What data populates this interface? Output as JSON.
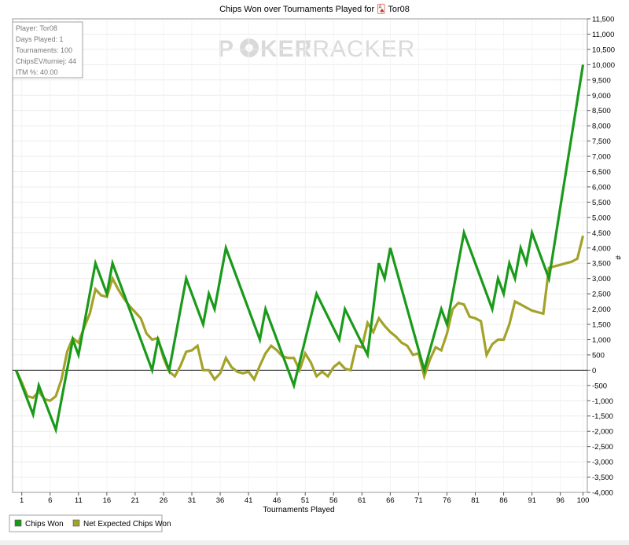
{
  "chart_data": {
    "type": "line",
    "title": "Chips Won over Tournaments Played for",
    "title_player": "Tor08",
    "xlabel": "Tournaments Played",
    "ylabel": "#",
    "xlim": [
      0,
      100
    ],
    "ylim": [
      -4000,
      11500
    ],
    "x_ticks": [
      1,
      6,
      11,
      16,
      21,
      26,
      31,
      36,
      41,
      46,
      51,
      56,
      61,
      66,
      71,
      76,
      81,
      86,
      91,
      96,
      100
    ],
    "y_ticks": [
      -4000,
      -3500,
      -3000,
      -2500,
      -2000,
      -1500,
      -1000,
      -500,
      0,
      500,
      1000,
      1500,
      2000,
      2500,
      3000,
      3500,
      4000,
      4500,
      5000,
      5500,
      6000,
      6500,
      7000,
      7500,
      8000,
      8500,
      9000,
      9500,
      10000,
      10500,
      11000,
      11500
    ],
    "y_tick_labels": [
      "-4,000",
      "-3,500",
      "-3,000",
      "-2,500",
      "-2,000",
      "-1,500",
      "-1,000",
      "-500",
      "0",
      "500",
      "1,000",
      "1,500",
      "2,000",
      "2,500",
      "3,000",
      "3,500",
      "4,000",
      "4,500",
      "5,000",
      "5,500",
      "6,000",
      "6,500",
      "7,000",
      "7,500",
      "8,000",
      "8,500",
      "9,000",
      "9,500",
      "10,000",
      "10,500",
      "11,000",
      "11,500"
    ],
    "grid": true,
    "legend_position": "bottom-left",
    "series": [
      {
        "name": "Chips Won",
        "color": "#1a9a1a",
        "points": [
          [
            0,
            0
          ],
          [
            3,
            -1450
          ],
          [
            4,
            -500
          ],
          [
            7,
            -1950
          ],
          [
            10,
            1000
          ],
          [
            11,
            500
          ],
          [
            14,
            3500
          ],
          [
            16,
            2500
          ],
          [
            17,
            3500
          ],
          [
            24,
            0
          ],
          [
            25,
            1000
          ],
          [
            27,
            0
          ],
          [
            30,
            3000
          ],
          [
            33,
            1500
          ],
          [
            34,
            2500
          ],
          [
            35,
            2000
          ],
          [
            37,
            4000
          ],
          [
            43,
            1000
          ],
          [
            44,
            2000
          ],
          [
            49,
            -500
          ],
          [
            53,
            2500
          ],
          [
            57,
            1000
          ],
          [
            58,
            2000
          ],
          [
            62,
            500
          ],
          [
            64,
            3500
          ],
          [
            65,
            3000
          ],
          [
            66,
            4000
          ],
          [
            72,
            0
          ],
          [
            75,
            2000
          ],
          [
            76,
            1500
          ],
          [
            79,
            4500
          ],
          [
            84,
            2000
          ],
          [
            85,
            3000
          ],
          [
            86,
            2500
          ],
          [
            87,
            3500
          ],
          [
            88,
            3000
          ],
          [
            89,
            4000
          ],
          [
            90,
            3500
          ],
          [
            91,
            4500
          ],
          [
            94,
            3000
          ],
          [
            100,
            10000
          ]
        ]
      },
      {
        "name": "Net Expected Chips Won",
        "color": "#a3a22a",
        "points": [
          [
            0,
            0
          ],
          [
            1,
            -400
          ],
          [
            2,
            -850
          ],
          [
            3,
            -900
          ],
          [
            4,
            -700
          ],
          [
            5,
            -950
          ],
          [
            6,
            -1000
          ],
          [
            7,
            -850
          ],
          [
            8,
            -300
          ],
          [
            9,
            600
          ],
          [
            10,
            1050
          ],
          [
            11,
            900
          ],
          [
            12,
            1400
          ],
          [
            13,
            1850
          ],
          [
            14,
            2650
          ],
          [
            15,
            2450
          ],
          [
            16,
            2400
          ],
          [
            17,
            3000
          ],
          [
            18,
            2650
          ],
          [
            19,
            2350
          ],
          [
            20,
            2100
          ],
          [
            21,
            1900
          ],
          [
            22,
            1700
          ],
          [
            23,
            1200
          ],
          [
            24,
            1000
          ],
          [
            25,
            1050
          ],
          [
            26,
            400
          ],
          [
            27,
            -50
          ],
          [
            28,
            -200
          ],
          [
            29,
            150
          ],
          [
            30,
            600
          ],
          [
            31,
            650
          ],
          [
            32,
            800
          ],
          [
            33,
            0
          ],
          [
            34,
            0
          ],
          [
            35,
            -300
          ],
          [
            36,
            -100
          ],
          [
            37,
            400
          ],
          [
            38,
            100
          ],
          [
            39,
            -50
          ],
          [
            40,
            -100
          ],
          [
            41,
            -50
          ],
          [
            42,
            -300
          ],
          [
            43,
            150
          ],
          [
            44,
            550
          ],
          [
            45,
            800
          ],
          [
            46,
            650
          ],
          [
            47,
            450
          ],
          [
            48,
            400
          ],
          [
            49,
            400
          ],
          [
            50,
            0
          ],
          [
            51,
            550
          ],
          [
            52,
            250
          ],
          [
            53,
            -200
          ],
          [
            54,
            -50
          ],
          [
            55,
            -200
          ],
          [
            56,
            100
          ],
          [
            57,
            250
          ],
          [
            58,
            50
          ],
          [
            59,
            0
          ],
          [
            60,
            800
          ],
          [
            61,
            750
          ],
          [
            62,
            1550
          ],
          [
            63,
            1250
          ],
          [
            64,
            1700
          ],
          [
            65,
            1450
          ],
          [
            66,
            1250
          ],
          [
            67,
            1100
          ],
          [
            68,
            900
          ],
          [
            69,
            800
          ],
          [
            70,
            500
          ],
          [
            71,
            550
          ],
          [
            72,
            -200
          ],
          [
            73,
            350
          ],
          [
            74,
            750
          ],
          [
            75,
            650
          ],
          [
            76,
            1200
          ],
          [
            77,
            2000
          ],
          [
            78,
            2200
          ],
          [
            79,
            2150
          ],
          [
            80,
            1750
          ],
          [
            81,
            1700
          ],
          [
            82,
            1600
          ],
          [
            83,
            500
          ],
          [
            84,
            850
          ],
          [
            85,
            1000
          ],
          [
            86,
            1000
          ],
          [
            87,
            1500
          ],
          [
            88,
            2250
          ],
          [
            89,
            2150
          ],
          [
            90,
            2050
          ],
          [
            91,
            1950
          ],
          [
            92,
            1900
          ],
          [
            93,
            1850
          ],
          [
            94,
            3350
          ],
          [
            95,
            3400
          ],
          [
            96,
            3450
          ],
          [
            97,
            3500
          ],
          [
            98,
            3550
          ],
          [
            99,
            3650
          ],
          [
            100,
            4400
          ]
        ]
      }
    ],
    "info_box": [
      "Player: Tor08",
      "Days Played: 1",
      "Tournaments: 100",
      "ChipsEV/turniej: 44",
      "ITM %: 40.00"
    ],
    "watermark": "POKERTRACKER",
    "watermark_parts": [
      "P",
      "KER",
      "TRACKER"
    ]
  }
}
